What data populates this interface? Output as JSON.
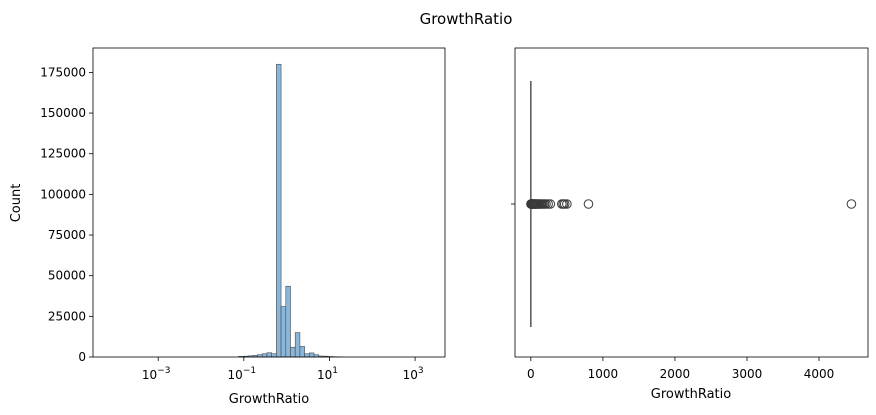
{
  "figure": {
    "title": "GrowthRatio"
  },
  "colors": {
    "hist_fill": "#8ab6d9",
    "hist_edge": "#4a4a4a",
    "box_fill": "#6fa8d6",
    "line": "#3a3a3a"
  },
  "chart_data": [
    {
      "type": "histogram",
      "xlabel": "GrowthRatio",
      "ylabel": "Count",
      "xscale": "log",
      "xlim": [
        3e-05,
        5000
      ],
      "ylim": [
        0,
        190000
      ],
      "xticks": [
        {
          "value": 0.001,
          "base": "10",
          "exp": "−3"
        },
        {
          "value": 0.1,
          "base": "10",
          "exp": "−1"
        },
        {
          "value": 10,
          "base": "10",
          "exp": "1"
        },
        {
          "value": 1000,
          "base": "10",
          "exp": "3"
        }
      ],
      "yticks": [
        "0",
        "25000",
        "50000",
        "75000",
        "100000",
        "125000",
        "150000",
        "175000"
      ],
      "bins": [
        {
          "x0": 0.0759,
          "x1": 0.0977,
          "count": 400
        },
        {
          "x0": 0.0977,
          "x1": 0.1259,
          "count": 500
        },
        {
          "x0": 0.1259,
          "x1": 0.1622,
          "count": 700
        },
        {
          "x0": 0.1622,
          "x1": 0.2089,
          "count": 1000
        },
        {
          "x0": 0.2089,
          "x1": 0.2692,
          "count": 1400
        },
        {
          "x0": 0.2692,
          "x1": 0.3467,
          "count": 2000
        },
        {
          "x0": 0.3467,
          "x1": 0.4467,
          "count": 2600
        },
        {
          "x0": 0.4467,
          "x1": 0.5754,
          "count": 2000
        },
        {
          "x0": 0.5754,
          "x1": 0.7413,
          "count": 180000
        },
        {
          "x0": 0.7413,
          "x1": 0.955,
          "count": 31000
        },
        {
          "x0": 0.955,
          "x1": 1.2303,
          "count": 43500
        },
        {
          "x0": 1.2303,
          "x1": 1.5849,
          "count": 6000
        },
        {
          "x0": 1.5849,
          "x1": 2.0417,
          "count": 15000
        },
        {
          "x0": 2.0417,
          "x1": 2.6303,
          "count": 6500
        },
        {
          "x0": 2.6303,
          "x1": 3.3884,
          "count": 2000
        },
        {
          "x0": 3.3884,
          "x1": 4.3652,
          "count": 2500
        },
        {
          "x0": 4.3652,
          "x1": 5.6234,
          "count": 1400
        },
        {
          "x0": 5.6234,
          "x1": 7.2444,
          "count": 600
        },
        {
          "x0": 7.2444,
          "x1": 9.3325,
          "count": 500
        },
        {
          "x0": 9.3325,
          "x1": 12.0226,
          "count": 300
        },
        {
          "x0": 12.0226,
          "x1": 15.4882,
          "count": 150
        },
        {
          "x0": 15.4882,
          "x1": 19.9526,
          "count": 80
        }
      ]
    },
    {
      "type": "box",
      "xlabel": "GrowthRatio",
      "xlim": [
        -220,
        4680
      ],
      "xticks": [
        "0",
        "1000",
        "2000",
        "3000",
        "4000"
      ],
      "box": {
        "q1": 0.5,
        "median": 0.7,
        "q3": 1.2,
        "whisker_low": 0,
        "whisker_high": 2.2
      },
      "outliers": [
        2.5,
        3,
        4,
        5,
        6,
        8,
        10,
        12,
        15,
        18,
        22,
        27,
        33,
        40,
        48,
        55,
        63,
        72,
        80,
        90,
        100,
        112,
        125,
        140,
        155,
        170,
        190,
        210,
        240,
        270,
        430,
        450,
        470,
        500,
        800,
        4450
      ],
      "grid": false
    }
  ]
}
